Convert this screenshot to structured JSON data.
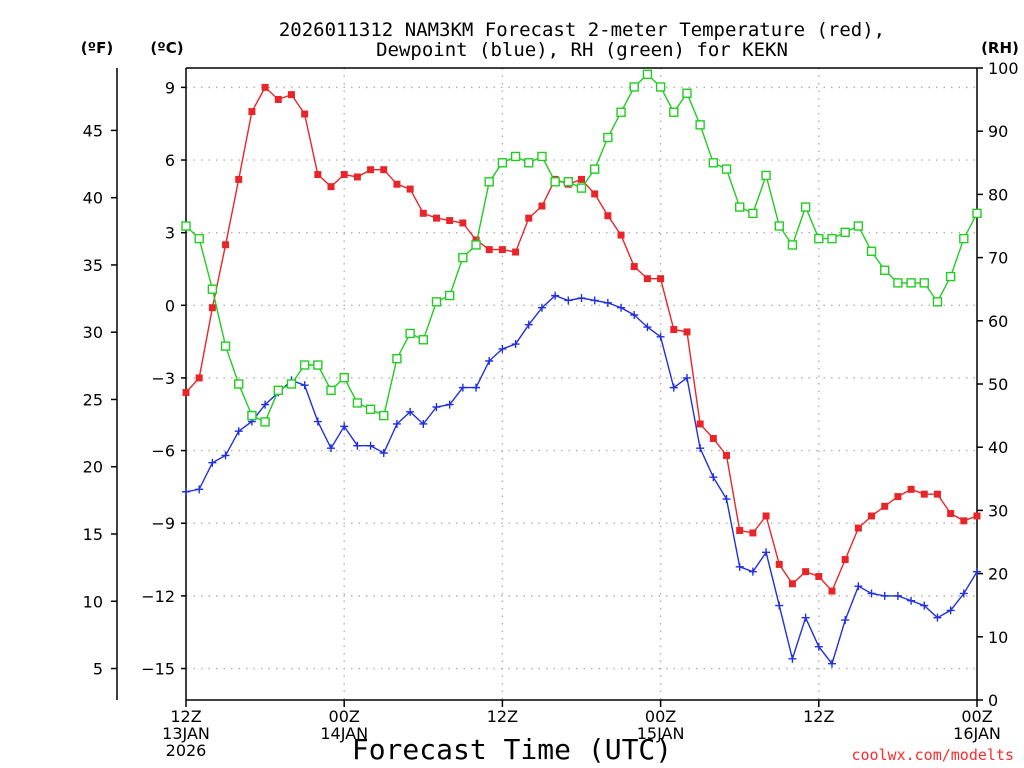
{
  "title": {
    "line1": "2026011312 NAM3KM Forecast 2-meter Temperature (red),",
    "line2": "Dewpoint (blue), RH (green) for KEKN"
  },
  "units": {
    "fahrenheit": "(ºF)",
    "celsius": "(ºC)",
    "rh": "(RH)"
  },
  "watermark": "coolwx.com/modelts",
  "chart_data": {
    "type": "line",
    "title": "2026011312 NAM3KM Forecast 2-meter Temperature (red), Dewpoint (blue), RH (green) for KEKN",
    "xlabel": "Forecast Time (UTC)",
    "x_unit": "forecast hour",
    "xlim": [
      0,
      60
    ],
    "ylim_c": [
      -16.3,
      9.8
    ],
    "ylim_rh": [
      0,
      100
    ],
    "x_ticks": [
      {
        "x": 0,
        "lines": [
          "12Z",
          "13JAN",
          "2026"
        ]
      },
      {
        "x": 12,
        "lines": [
          "00Z",
          "14JAN"
        ]
      },
      {
        "x": 24,
        "lines": [
          "12Z"
        ]
      },
      {
        "x": 36,
        "lines": [
          "00Z",
          "15JAN"
        ]
      },
      {
        "x": 48,
        "lines": [
          "12Z"
        ]
      },
      {
        "x": 60,
        "lines": [
          "00Z",
          "16JAN"
        ]
      }
    ],
    "y_left_c_ticks": [
      {
        "v": 9,
        "label": "9"
      },
      {
        "v": 6,
        "label": "6"
      },
      {
        "v": 3,
        "label": "3"
      },
      {
        "v": 0,
        "label": "0"
      },
      {
        "v": -3,
        "label": "−3"
      },
      {
        "v": -6,
        "label": "−6"
      },
      {
        "v": -9,
        "label": "−9"
      },
      {
        "v": -12,
        "label": "−12"
      },
      {
        "v": -15,
        "label": "−15"
      }
    ],
    "y_left_f_ticks": [
      {
        "v": 45,
        "label": "45"
      },
      {
        "v": 40,
        "label": "40"
      },
      {
        "v": 35,
        "label": "35"
      },
      {
        "v": 30,
        "label": "30"
      },
      {
        "v": 25,
        "label": "25"
      },
      {
        "v": 20,
        "label": "20"
      },
      {
        "v": 15,
        "label": "15"
      },
      {
        "v": 10,
        "label": "10"
      },
      {
        "v": 5,
        "label": "5"
      }
    ],
    "y_right_rh_ticks": [
      {
        "v": 100,
        "label": "100"
      },
      {
        "v": 90,
        "label": "90"
      },
      {
        "v": 80,
        "label": "80"
      },
      {
        "v": 70,
        "label": "70"
      },
      {
        "v": 60,
        "label": "60"
      },
      {
        "v": 50,
        "label": "50"
      },
      {
        "v": 40,
        "label": "40"
      },
      {
        "v": 30,
        "label": "30"
      },
      {
        "v": 20,
        "label": "20"
      },
      {
        "v": 10,
        "label": "10"
      },
      {
        "v": 0,
        "label": "0"
      }
    ],
    "grid": true,
    "series": [
      {
        "name": "2-meter Temperature",
        "unit": "°C",
        "axis": "celsius",
        "color": "#e8262a",
        "marker": "filled-square",
        "x": [
          0,
          1,
          2,
          3,
          4,
          5,
          6,
          7,
          8,
          9,
          10,
          11,
          12,
          13,
          14,
          15,
          16,
          17,
          18,
          19,
          20,
          21,
          22,
          23,
          24,
          25,
          26,
          27,
          28,
          29,
          30,
          31,
          32,
          33,
          34,
          35,
          36,
          37,
          38,
          39,
          40,
          41,
          42,
          43,
          44,
          45,
          46,
          47,
          48,
          49,
          50,
          51,
          52,
          53,
          54,
          55,
          56,
          57,
          58,
          59,
          60
        ],
        "y": [
          -3.6,
          -3.0,
          -0.1,
          2.5,
          5.2,
          8.0,
          9.0,
          8.5,
          8.7,
          7.9,
          5.4,
          4.9,
          5.4,
          5.3,
          5.6,
          5.6,
          5.0,
          4.8,
          3.8,
          3.6,
          3.5,
          3.4,
          2.7,
          2.3,
          2.3,
          2.2,
          3.6,
          4.1,
          5.2,
          5.0,
          5.2,
          4.6,
          3.7,
          2.9,
          1.6,
          1.1,
          1.1,
          -1.0,
          -1.1,
          -4.9,
          -5.5,
          -6.2,
          -9.3,
          -9.4,
          -8.7,
          -10.7,
          -11.5,
          -11.0,
          -11.2,
          -11.8,
          -10.5,
          -9.2,
          -8.7,
          -8.3,
          -7.9,
          -7.6,
          -7.8,
          -7.8,
          -8.6,
          -8.9,
          -8.7
        ]
      },
      {
        "name": "Dewpoint",
        "unit": "°C",
        "axis": "celsius",
        "color": "#2030e0",
        "marker": "plus",
        "x": [
          0,
          1,
          2,
          3,
          4,
          5,
          6,
          7,
          8,
          9,
          10,
          11,
          12,
          13,
          14,
          15,
          16,
          17,
          18,
          19,
          20,
          21,
          22,
          23,
          24,
          25,
          26,
          27,
          28,
          29,
          30,
          31,
          32,
          33,
          34,
          35,
          36,
          37,
          38,
          39,
          40,
          41,
          42,
          43,
          44,
          45,
          46,
          47,
          48,
          49,
          50,
          51,
          52,
          53,
          54,
          55,
          56,
          57,
          58,
          59,
          60
        ],
        "y": [
          -7.7,
          -7.6,
          -6.5,
          -6.2,
          -5.2,
          -4.8,
          -4.1,
          -3.6,
          -3.1,
          -3.3,
          -4.8,
          -5.9,
          -5.0,
          -5.8,
          -5.8,
          -6.1,
          -4.9,
          -4.4,
          -4.9,
          -4.2,
          -4.1,
          -3.4,
          -3.4,
          -2.3,
          -1.8,
          -1.6,
          -0.8,
          -0.1,
          0.4,
          0.2,
          0.3,
          0.2,
          0.1,
          -0.1,
          -0.4,
          -0.9,
          -1.3,
          -3.4,
          -3.0,
          -5.9,
          -7.1,
          -8.0,
          -10.8,
          -11.0,
          -10.2,
          -12.4,
          -14.6,
          -12.9,
          -14.1,
          -14.8,
          -13.0,
          -11.6,
          -11.9,
          -12.0,
          -12.0,
          -12.2,
          -12.4,
          -12.9,
          -12.6,
          -11.9,
          -11.0
        ]
      },
      {
        "name": "RH",
        "unit": "%",
        "axis": "rh",
        "color": "#22cc22",
        "marker": "open-square",
        "x": [
          0,
          1,
          2,
          3,
          4,
          5,
          6,
          7,
          8,
          9,
          10,
          11,
          12,
          13,
          14,
          15,
          16,
          17,
          18,
          19,
          20,
          21,
          22,
          23,
          24,
          25,
          26,
          27,
          28,
          29,
          30,
          31,
          32,
          33,
          34,
          35,
          36,
          37,
          38,
          39,
          40,
          41,
          42,
          43,
          44,
          45,
          46,
          47,
          48,
          49,
          50,
          51,
          52,
          53,
          54,
          55,
          56,
          57,
          58,
          59,
          60
        ],
        "y": [
          75,
          73,
          65,
          56,
          50,
          45,
          44,
          49,
          50,
          53,
          53,
          49,
          51,
          47,
          46,
          45,
          54,
          58,
          57,
          63,
          64,
          70,
          72,
          82,
          85,
          86,
          85,
          86,
          82,
          82,
          81,
          84,
          89,
          93,
          97,
          99,
          97,
          93,
          96,
          91,
          85,
          84,
          78,
          77,
          83,
          75,
          72,
          78,
          73,
          73,
          74,
          75,
          71,
          68,
          66,
          66,
          66,
          63,
          67,
          73,
          77
        ]
      }
    ]
  }
}
